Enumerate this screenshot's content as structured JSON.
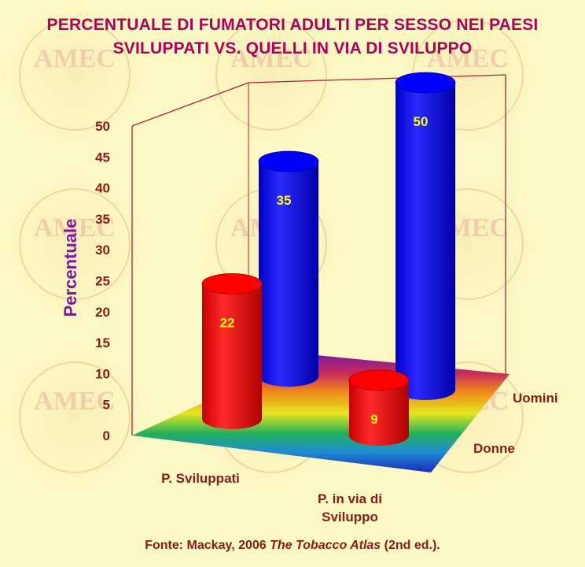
{
  "title_line1": "PERCENTUALE DI FUMATORI ADULTI PER SESSO NEI PAESI",
  "title_line2": "SVILUPPATI VS. QUELLI IN VIA DI SVILUPPO",
  "watermark_text": "AMEC",
  "source": {
    "prefix": "Fonte: Mackay, 2006 ",
    "book": "The Tobacco Atlas",
    "suffix": " (2nd ed.)."
  },
  "colors": {
    "title": "#b0005a",
    "ylabel": "#7b1aa0",
    "text": "#8b1a1a",
    "donne": "#ff0000",
    "uomini": "#0000ff",
    "value_label": "#ffff00",
    "background": "#fdf9c4"
  },
  "chart_data": {
    "type": "bar",
    "subtype": "3d-cylinder",
    "categories": [
      "P. Sviluppati",
      "P. in via di\nSviluppo"
    ],
    "category_lines": [
      [
        "P. Sviluppati"
      ],
      [
        "P. in via di",
        "Sviluppo"
      ]
    ],
    "series": [
      {
        "name": "Donne",
        "values": [
          22,
          9
        ],
        "color": "#ff0000"
      },
      {
        "name": "Uomini",
        "values": [
          35,
          50
        ],
        "color": "#0000ff"
      }
    ],
    "ylabel": "Percentuale",
    "ylim": [
      0,
      50
    ],
    "yticks": [
      "0",
      "5",
      "10",
      "15",
      "20",
      "25",
      "30",
      "35",
      "40",
      "45",
      "50"
    ],
    "data_labels": true,
    "floor": "rainbow-gradient"
  }
}
